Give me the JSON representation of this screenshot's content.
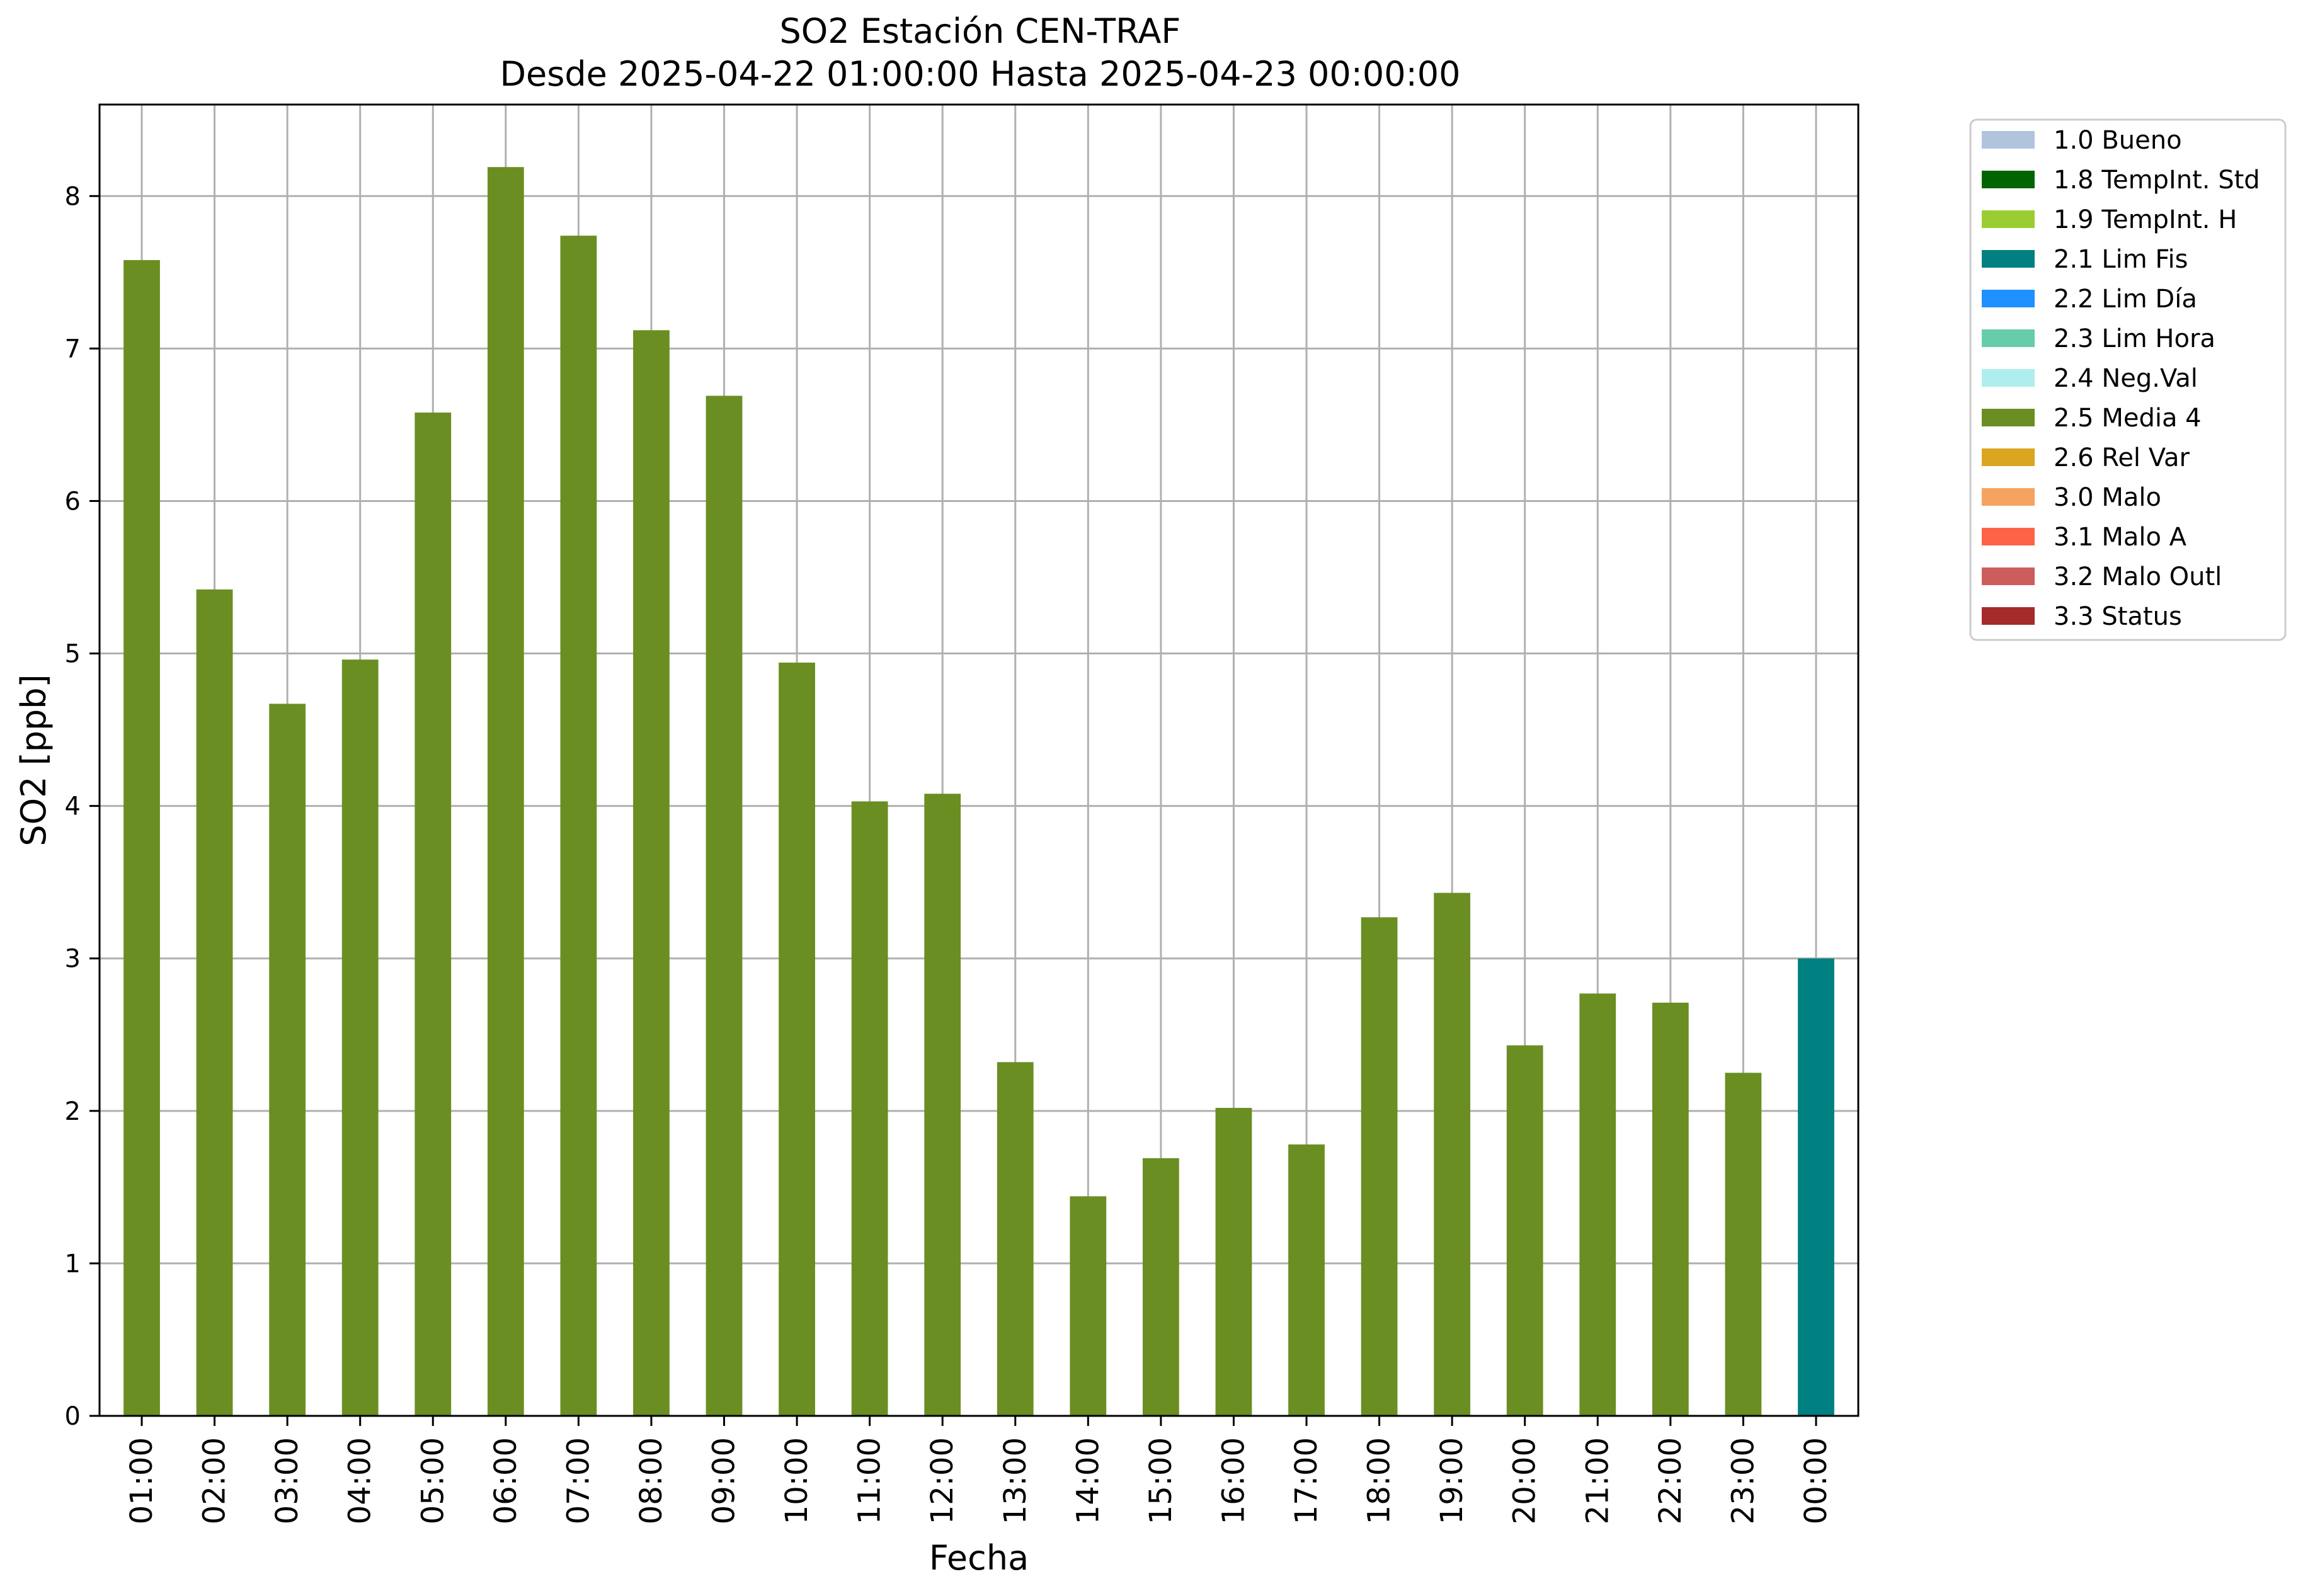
{
  "chart_data": {
    "type": "bar",
    "title": "SO2 Estación CEN-TRAF",
    "subtitle": "Desde 2025-04-22 01:00:00 Hasta 2025-04-23 00:00:00",
    "xlabel": "Fecha",
    "ylabel": "SO2 [ppb]",
    "ylim": [
      0,
      8.6
    ],
    "yticks": [
      0,
      1,
      2,
      3,
      4,
      5,
      6,
      7,
      8
    ],
    "grid": true,
    "legend_position": "outside-right-top",
    "categories": [
      "01:00",
      "02:00",
      "03:00",
      "04:00",
      "05:00",
      "06:00",
      "07:00",
      "08:00",
      "09:00",
      "10:00",
      "11:00",
      "12:00",
      "13:00",
      "14:00",
      "15:00",
      "16:00",
      "17:00",
      "18:00",
      "19:00",
      "20:00",
      "21:00",
      "22:00",
      "23:00",
      "00:00"
    ],
    "values": [
      7.58,
      5.42,
      4.67,
      4.96,
      6.58,
      8.19,
      7.74,
      7.12,
      6.69,
      4.94,
      4.03,
      4.08,
      2.32,
      1.44,
      1.69,
      2.02,
      1.78,
      3.27,
      3.43,
      2.43,
      2.77,
      2.71,
      2.25,
      3.0
    ],
    "bar_flags": [
      "2.5 Media 4",
      "2.5 Media 4",
      "2.5 Media 4",
      "2.5 Media 4",
      "2.5 Media 4",
      "2.5 Media 4",
      "2.5 Media 4",
      "2.5 Media 4",
      "2.5 Media 4",
      "2.5 Media 4",
      "2.5 Media 4",
      "2.5 Media 4",
      "2.5 Media 4",
      "2.5 Media 4",
      "2.5 Media 4",
      "2.5 Media 4",
      "2.5 Media 4",
      "2.5 Media 4",
      "2.5 Media 4",
      "2.5 Media 4",
      "2.5 Media 4",
      "2.5 Media 4",
      "2.5 Media 4",
      "2.1 Lim Fis"
    ],
    "legend": [
      {
        "label": "1.0 Bueno",
        "color": "#b0c4de"
      },
      {
        "label": "1.8 TempInt. Std",
        "color": "#006400"
      },
      {
        "label": "1.9 TempInt. H",
        "color": "#9acd32"
      },
      {
        "label": "2.1 Lim Fis",
        "color": "#008080"
      },
      {
        "label": "2.2 Lim Día",
        "color": "#1e90ff"
      },
      {
        "label": "2.3 Lim Hora",
        "color": "#66cdaa"
      },
      {
        "label": "2.4 Neg.Val",
        "color": "#afeeee"
      },
      {
        "label": "2.5 Media 4",
        "color": "#6b8e23"
      },
      {
        "label": "2.6 Rel Var",
        "color": "#daa520"
      },
      {
        "label": "3.0 Malo",
        "color": "#f4a460"
      },
      {
        "label": "3.1 Malo A",
        "color": "#ff6347"
      },
      {
        "label": "3.2 Malo Outl",
        "color": "#cd5c5c"
      },
      {
        "label": "3.3 Status",
        "color": "#a52a2a"
      }
    ]
  }
}
